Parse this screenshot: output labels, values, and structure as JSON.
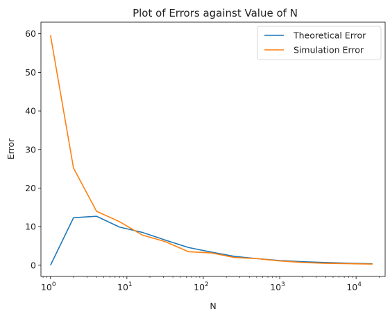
{
  "chart_data": {
    "type": "line",
    "title": "Plot of Errors against Value of N",
    "xlabel": "N",
    "ylabel": "Error",
    "xscale": "log",
    "xlim": [
      0.75,
      24000
    ],
    "ylim": [
      -2.9,
      63
    ],
    "grid": false,
    "legend_position": "top-right",
    "x_ticks": [
      {
        "value": 1,
        "label_base": "10",
        "label_exp": "0"
      },
      {
        "value": 10,
        "label_base": "10",
        "label_exp": "1"
      },
      {
        "value": 100,
        "label_base": "10",
        "label_exp": "2"
      },
      {
        "value": 1000,
        "label_base": "10",
        "label_exp": "3"
      },
      {
        "value": 10000,
        "label_base": "10",
        "label_exp": "4"
      }
    ],
    "y_ticks": [
      {
        "value": 0,
        "label": "0"
      },
      {
        "value": 10,
        "label": "10"
      },
      {
        "value": 20,
        "label": "20"
      },
      {
        "value": 30,
        "label": "30"
      },
      {
        "value": 40,
        "label": "40"
      },
      {
        "value": 50,
        "label": "50"
      },
      {
        "value": 60,
        "label": "60"
      }
    ],
    "x": [
      1,
      2,
      4,
      8,
      16,
      32,
      64,
      128,
      256,
      512,
      1024,
      2048,
      4096,
      8192,
      16384
    ],
    "series": [
      {
        "name": "Theoretical Error",
        "color": "#1f77b4",
        "values": [
          0,
          12.3,
          12.7,
          9.9,
          8.5,
          6.5,
          4.6,
          3.4,
          2.3,
          1.7,
          1.2,
          0.9,
          0.7,
          0.5,
          0.4
        ]
      },
      {
        "name": "Simulation Error",
        "color": "#ff7f0e",
        "values": [
          59.6,
          25.2,
          14.0,
          11.3,
          7.8,
          6.1,
          3.5,
          3.2,
          2.0,
          1.7,
          1.1,
          0.7,
          0.5,
          0.4,
          0.3
        ]
      }
    ]
  }
}
